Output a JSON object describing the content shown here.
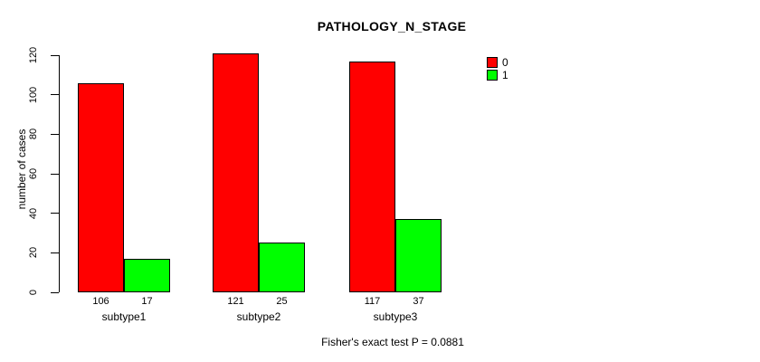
{
  "chart_data": {
    "type": "bar",
    "title": "PATHOLOGY_N_STAGE",
    "ylabel": "number of cases",
    "xlabel": "",
    "categories": [
      "subtype1",
      "subtype2",
      "subtype3"
    ],
    "series": [
      {
        "name": "0",
        "color": "#FF0000",
        "values": [
          106,
          121,
          117
        ]
      },
      {
        "name": "1",
        "color": "#00FF00",
        "values": [
          17,
          25,
          37
        ]
      }
    ],
    "ylim": [
      0,
      120
    ],
    "yticks": [
      0,
      20,
      40,
      60,
      80,
      100,
      120
    ],
    "show_values_below_bars": true,
    "grid": false,
    "legend_position": "top-right",
    "caption": "Fisher's exact test P = 0.0881",
    "colors": {
      "background": "#FFFFFF",
      "axis": "#000000",
      "text": "#000000"
    }
  }
}
